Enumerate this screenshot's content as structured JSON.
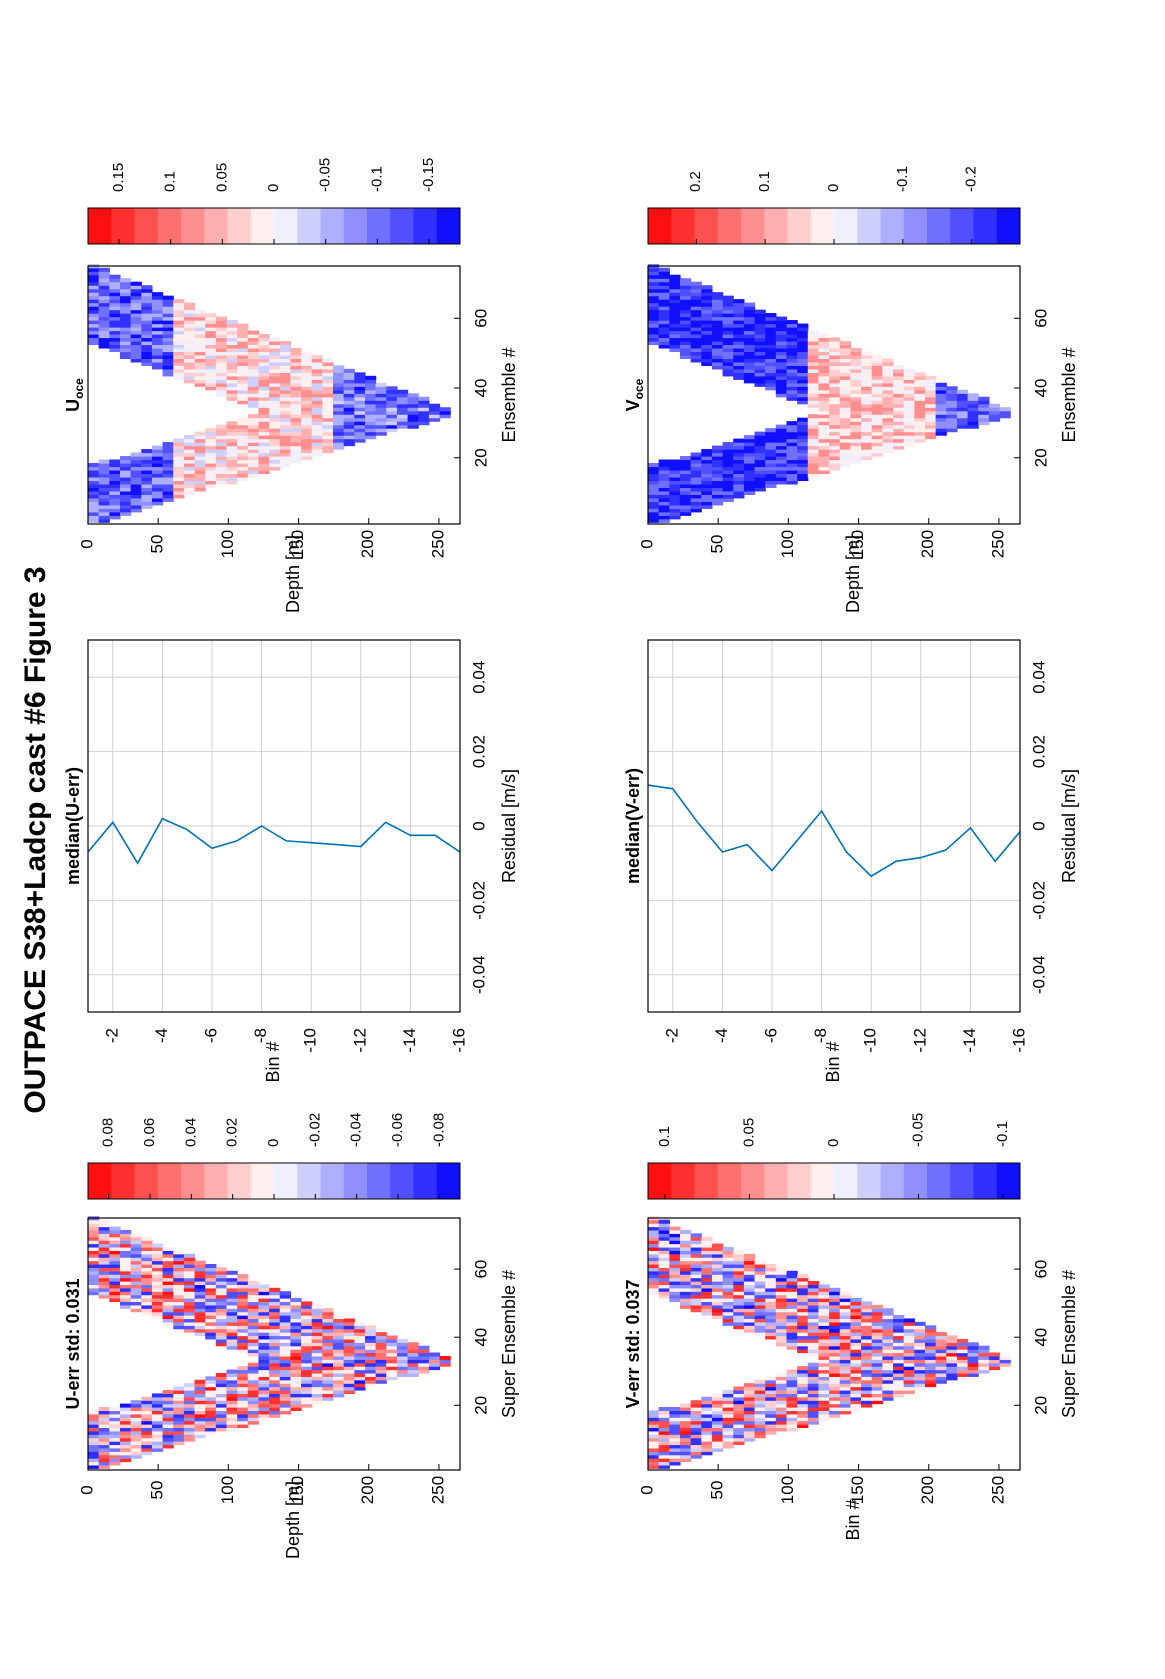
{
  "figure_title": "OUTPACE S38+Ladcp cast #6  Figure 3",
  "colors": {
    "red": "#ff0000",
    "blue": "#0000ff",
    "line": "#0072bd",
    "grid": "#d0d0d0"
  },
  "chart_data": [
    {
      "id": "u_err",
      "type": "heatmap",
      "title": "U-err std: 0.031",
      "xlabel": "Super Ensemble #",
      "ylabel": "Depth [m]",
      "xticks": [
        20,
        40,
        60
      ],
      "yticks": [
        0,
        50,
        100,
        150,
        200,
        250
      ],
      "xlim": [
        1,
        75
      ],
      "ylim": [
        0,
        265
      ],
      "bottom_ensemble": 33,
      "colorbar": {
        "ticks": [
          "0.08",
          "0.06",
          "0.04",
          "0.02",
          "0",
          "-0.02",
          "-0.04",
          "-0.06",
          "-0.08"
        ],
        "range": [
          -0.09,
          0.09
        ]
      },
      "pattern": "noise"
    },
    {
      "id": "u_median",
      "type": "line",
      "title": "median(U-err)",
      "xlabel": "Residual [m/s]",
      "ylabel": "Bin #",
      "xticks": [
        "-0.04",
        "-0.02",
        "0",
        "0.02",
        "0.04"
      ],
      "xlim": [
        -0.05,
        0.05
      ],
      "yticks": [
        "-2",
        "-4",
        "-6",
        "-8",
        "-10",
        "-12",
        "-14",
        "-16"
      ],
      "ylim": [
        -1,
        -16
      ],
      "grid": true,
      "series": [
        {
          "bins": [
            -1,
            -2,
            -3,
            -4,
            -5,
            -6,
            -7,
            -8,
            -9,
            -10,
            -11,
            -12,
            -13,
            -14,
            -15,
            -16
          ],
          "values": [
            -0.007,
            0.001,
            -0.01,
            0.002,
            -0.001,
            -0.006,
            -0.004,
            0.0,
            -0.004,
            -0.0045,
            -0.005,
            -0.0055,
            0.001,
            -0.0025,
            -0.0025,
            -0.007
          ]
        }
      ]
    },
    {
      "id": "u_oce",
      "type": "heatmap",
      "title": "U",
      "title_sub": "oce",
      "xlabel": "Ensemble #",
      "ylabel": "Depth [m]",
      "xticks": [
        20,
        40,
        60
      ],
      "yticks": [
        0,
        50,
        100,
        150,
        200,
        250
      ],
      "xlim": [
        1,
        75
      ],
      "ylim": [
        0,
        265
      ],
      "bottom_ensemble": 33,
      "colorbar": {
        "ticks": [
          "0.15",
          "0.1",
          "0.05",
          "0",
          "-0.05",
          "-0.1",
          "-0.15"
        ],
        "range": [
          -0.18,
          0.18
        ]
      },
      "pattern": "u_oce"
    },
    {
      "id": "v_err",
      "type": "heatmap",
      "title": "V-err std: 0.037",
      "xlabel": "Super Ensemble #",
      "ylabel": "Bin #",
      "xticks": [
        20,
        40,
        60
      ],
      "yticks": [
        0,
        50,
        100,
        150,
        200,
        250
      ],
      "xlim": [
        1,
        75
      ],
      "ylim": [
        0,
        265
      ],
      "bottom_ensemble": 33,
      "colorbar": {
        "ticks": [
          "0.1",
          "0.05",
          "0",
          "-0.05",
          "-0.1"
        ],
        "range": [
          -0.11,
          0.11
        ]
      },
      "pattern": "noise"
    },
    {
      "id": "v_median",
      "type": "line",
      "title": "median(V-err)",
      "xlabel": "Residual [m/s]",
      "ylabel": "Bin #",
      "xticks": [
        "-0.04",
        "-0.02",
        "0",
        "0.02",
        "0.04"
      ],
      "xlim": [
        -0.05,
        0.05
      ],
      "yticks": [
        "-2",
        "-4",
        "-6",
        "-8",
        "-10",
        "-12",
        "-14",
        "-16"
      ],
      "ylim": [
        -1,
        -16
      ],
      "grid": true,
      "series": [
        {
          "bins": [
            -1,
            -2,
            -3,
            -4,
            -5,
            -6,
            -7,
            -8,
            -9,
            -10,
            -11,
            -12,
            -13,
            -14,
            -15,
            -16
          ],
          "values": [
            0.011,
            0.01,
            0.001,
            -0.007,
            -0.005,
            -0.012,
            -0.004,
            0.004,
            -0.007,
            -0.0135,
            -0.0095,
            -0.0085,
            -0.0065,
            -0.0005,
            -0.0095,
            -0.0015
          ]
        }
      ]
    },
    {
      "id": "v_oce",
      "type": "heatmap",
      "title": "V",
      "title_sub": "oce",
      "xlabel": "Ensemble #",
      "ylabel": "Depth [m]",
      "xticks": [
        20,
        40,
        60
      ],
      "yticks": [
        0,
        50,
        100,
        150,
        200,
        250
      ],
      "xlim": [
        1,
        75
      ],
      "ylim": [
        0,
        265
      ],
      "bottom_ensemble": 33,
      "colorbar": {
        "ticks": [
          "0.2",
          "0.1",
          "0",
          "-0.1",
          "-0.2"
        ],
        "range": [
          -0.27,
          0.27
        ]
      },
      "pattern": "v_oce"
    }
  ]
}
